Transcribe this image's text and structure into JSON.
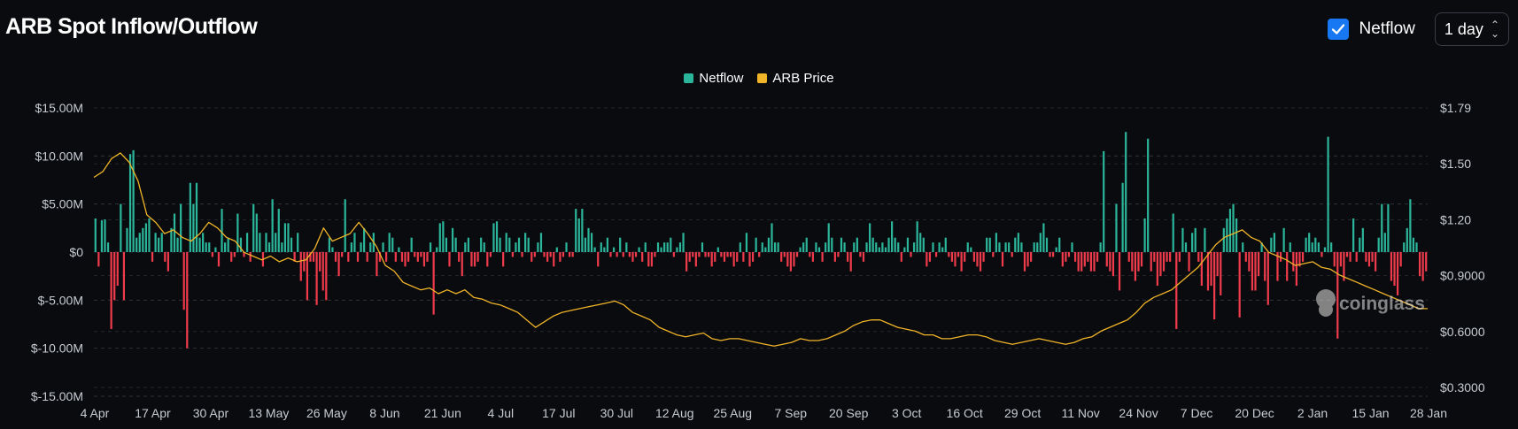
{
  "header": {
    "title": "ARB Spot Inflow/Outflow",
    "checkbox_label": "Netflow",
    "checkbox_checked": true,
    "interval": "1 day"
  },
  "colors": {
    "positive": "#2bb59a",
    "negative": "#ef3b4b",
    "price": "#f0b429",
    "checkbox": "#1877f2"
  },
  "watermark": "coinglass",
  "chart_data": {
    "type": "bar",
    "legend": [
      "Netflow",
      "ARB Price"
    ],
    "grid": true,
    "legend_position": "top-center",
    "y_left": {
      "ticks": [
        "$15.00M",
        "$10.00M",
        "$5.00M",
        "$0",
        "$-5.00M",
        "$-10.00M",
        "$-15.00M"
      ],
      "range": [
        -15,
        15
      ],
      "unit": "M USD"
    },
    "y_right": {
      "ticks": [
        "$1.79",
        "$1.50",
        "$1.20",
        "$0.9000",
        "$0.6000",
        "$0.3000"
      ],
      "range": [
        0.3,
        1.79
      ]
    },
    "x_ticks": [
      "4 Apr",
      "17 Apr",
      "30 Apr",
      "13 May",
      "26 May",
      "8 Jun",
      "21 Jun",
      "4 Jul",
      "17 Jul",
      "30 Jul",
      "12 Aug",
      "25 Aug",
      "7 Sep",
      "20 Sep",
      "3 Oct",
      "16 Oct",
      "29 Oct",
      "11 Nov",
      "24 Nov",
      "7 Dec",
      "20 Dec",
      "2 Jan",
      "15 Jan",
      "28 Jan"
    ],
    "series": [
      {
        "name": "Netflow",
        "values": [
          3.5,
          -1.5,
          3.3,
          3.4,
          1.0,
          -8.0,
          -5.0,
          -3.5,
          5.0,
          -5.0,
          2.5,
          10.2,
          10.6,
          1.5,
          2.0,
          2.5,
          3.0,
          3.5,
          -1.0,
          2.0,
          1.5,
          2.0,
          -1.0,
          -2.0,
          2.5,
          4.0,
          1.5,
          5.0,
          -6.0,
          -10.0,
          7.2,
          5.0,
          7.2,
          1.5,
          2.0,
          1.0,
          1.0,
          -0.5,
          0.5,
          -1.5,
          4.5,
          1.0,
          1.5,
          -1.0,
          -0.5,
          4.0,
          1.5,
          -0.5,
          2.0,
          -1.0,
          5.0,
          4.0,
          2.0,
          -1.5,
          2.0,
          1.0,
          5.5,
          2.0,
          4.5,
          1.0,
          3.0,
          3.0,
          1.5,
          -1.0,
          2.0,
          -3.0,
          -2.0,
          -5.0,
          -1.0,
          -1.0,
          -5.5,
          -2.0,
          -4.0,
          -5.0,
          1.5,
          0.5,
          -1.0,
          -2.5,
          -0.5,
          5.5,
          -1.0,
          1.0,
          2.0,
          -1.0,
          1.0,
          2.5,
          -1.0,
          1.0,
          2.0,
          -2.5,
          -1.0,
          1.0,
          -1.0,
          2.0,
          1.5,
          -1.0,
          0.5,
          -1.0,
          -1.5,
          -1.0,
          1.5,
          -0.5,
          -1.0,
          -0.5,
          -1.5,
          -1.0,
          1.0,
          -6.5,
          0.5,
          3.0,
          3.2,
          1.5,
          -1.5,
          2.5,
          1.5,
          -1.0,
          -2.5,
          1.0,
          1.5,
          -1.5,
          -1.5,
          -1.0,
          1.5,
          1.0,
          -1.5,
          -0.5,
          3.0,
          3.2,
          1.5,
          -1.5,
          2.0,
          1.5,
          -0.5,
          1.0,
          1.5,
          -0.5,
          2.0,
          1.5,
          -1.0,
          -0.5,
          1.0,
          2.0,
          -0.5,
          -1.0,
          -0.5,
          -1.5,
          0.5,
          -1.0,
          -0.5,
          1.0,
          -0.5,
          -0.5,
          4.5,
          3.5,
          4.5,
          1.5,
          2.5,
          2.0,
          0.5,
          -1.5,
          1.0,
          0.5,
          1.5,
          -0.5,
          0.5,
          -0.5,
          1.5,
          -0.5,
          1.0,
          -0.5,
          -1.0,
          -0.5,
          0.5,
          -1.0,
          1.0,
          -1.5,
          -1.5,
          -0.5,
          1.0,
          0.5,
          1.0,
          1.0,
          1.5,
          -0.5,
          0.5,
          1.0,
          2.0,
          -2.0,
          -1.0,
          -0.5,
          -1.5,
          -0.5,
          1.0,
          -0.5,
          -0.5,
          -1.5,
          -1.0,
          0.5,
          -0.5,
          -1.0,
          -0.5,
          -0.5,
          -1.5,
          -1.0,
          1.0,
          -1.0,
          2.0,
          -1.5,
          -1.0,
          1.5,
          -0.5,
          1.0,
          0.5,
          1.5,
          3.0,
          1.0,
          1.0,
          -1.0,
          -0.5,
          -1.5,
          -2.0,
          -1.5,
          -0.5,
          0.5,
          1.0,
          1.5,
          -0.5,
          -1.0,
          1.0,
          0.5,
          -1.0,
          1.0,
          3.0,
          1.5,
          -1.0,
          -0.5,
          1.5,
          1.0,
          -1.0,
          -2.0,
          1.0,
          1.5,
          -0.5,
          -1.0,
          1.0,
          3.0,
          1.5,
          1.0,
          0.5,
          1.0,
          0.5,
          1.5,
          3.2,
          1.5,
          1.0,
          -1.0,
          0.5,
          1.5,
          -0.5,
          1.0,
          3.2,
          2.0,
          1.5,
          -1.5,
          -1.0,
          1.0,
          -0.5,
          1.0,
          0.5,
          1.5,
          -0.5,
          -1.0,
          -1.5,
          -0.5,
          -2.0,
          -1.0,
          1.0,
          0.5,
          -1.0,
          -1.5,
          -2.0,
          -1.0,
          1.5,
          1.5,
          -0.5,
          2.0,
          1.0,
          -1.5,
          1.0,
          1.0,
          -0.5,
          1.5,
          2.0,
          1.0,
          -2.0,
          -1.5,
          -1.0,
          1.0,
          1.0,
          2.0,
          3.0,
          1.5,
          -0.5,
          -0.5,
          0.5,
          1.5,
          -1.5,
          -1.0,
          -0.5,
          1.0,
          -1.0,
          -2.0,
          -2.0,
          -1.5,
          -1.0,
          -2.0,
          -2.0,
          -1.0,
          1.0,
          10.5,
          -1.5,
          -2.0,
          -2.5,
          5.0,
          -4.0,
          7.2,
          12.5,
          -1.0,
          -2.0,
          -3.0,
          -2.0,
          -1.5,
          3.5,
          11.8,
          -2.0,
          -1.0,
          -3.5,
          -2.5,
          -2.0,
          -1.0,
          -1.0,
          4.0,
          -8.0,
          -1.0,
          2.5,
          1.0,
          -2.0,
          2.0,
          2.5,
          -1.0,
          -3.5,
          2.5,
          -4.0,
          -3.5,
          -7.0,
          -2.5,
          -4.5,
          2.5,
          3.5,
          4.5,
          5.0,
          3.5,
          -6.8,
          1.0,
          -1.0,
          -2.0,
          -4.0,
          -4.0,
          -2.5,
          1.0,
          -3.0,
          -5.5,
          1.5,
          2.0,
          -3.0,
          -1.0,
          2.5,
          -3.0,
          1.0,
          -2.0,
          -3.5,
          -1.5,
          -1.0,
          1.5,
          2.0,
          1.0,
          1.5,
          1.0,
          -0.5,
          0.5,
          12.0,
          1.0,
          -1.5,
          -9.0,
          -1.5,
          -3.0,
          -0.5,
          -1.0,
          3.5,
          -1.0,
          1.5,
          2.5,
          -1.0,
          -1.5,
          -1.0,
          -2.0,
          1.5,
          5.0,
          2.0,
          5.0,
          -3.0,
          -3.5,
          -4.5,
          -1.5,
          1.0,
          2.5,
          5.5,
          1.5,
          1.0,
          -2.5,
          -3.0,
          -2.0
        ]
      },
      {
        "name": "ARB Price",
        "values": [
          1.42,
          1.45,
          1.52,
          1.55,
          1.5,
          1.4,
          1.22,
          1.18,
          1.12,
          1.14,
          1.1,
          1.08,
          1.12,
          1.18,
          1.15,
          1.1,
          1.08,
          1.02,
          1.0,
          0.98,
          1.0,
          0.97,
          0.99,
          0.97,
          0.98,
          1.04,
          1.15,
          1.08,
          1.1,
          1.12,
          1.18,
          1.12,
          1.05,
          0.95,
          0.92,
          0.86,
          0.84,
          0.82,
          0.83,
          0.8,
          0.82,
          0.8,
          0.82,
          0.78,
          0.77,
          0.75,
          0.74,
          0.72,
          0.7,
          0.66,
          0.62,
          0.65,
          0.68,
          0.7,
          0.71,
          0.72,
          0.73,
          0.74,
          0.75,
          0.76,
          0.74,
          0.7,
          0.68,
          0.66,
          0.62,
          0.6,
          0.58,
          0.57,
          0.58,
          0.59,
          0.56,
          0.55,
          0.56,
          0.56,
          0.55,
          0.54,
          0.53,
          0.52,
          0.53,
          0.54,
          0.56,
          0.55,
          0.55,
          0.56,
          0.58,
          0.6,
          0.63,
          0.65,
          0.66,
          0.66,
          0.64,
          0.62,
          0.61,
          0.6,
          0.58,
          0.58,
          0.56,
          0.56,
          0.57,
          0.58,
          0.58,
          0.57,
          0.55,
          0.54,
          0.53,
          0.54,
          0.55,
          0.56,
          0.55,
          0.54,
          0.53,
          0.54,
          0.56,
          0.57,
          0.6,
          0.62,
          0.64,
          0.66,
          0.7,
          0.75,
          0.78,
          0.8,
          0.82,
          0.86,
          0.9,
          0.94,
          1.0,
          1.06,
          1.1,
          1.12,
          1.14,
          1.1,
          1.08,
          1.02,
          1.0,
          0.98,
          0.95,
          0.96,
          0.97,
          0.94,
          0.93,
          0.9,
          0.88,
          0.86,
          0.84,
          0.82,
          0.8,
          0.78,
          0.76,
          0.74,
          0.72,
          0.72
        ]
      }
    ]
  }
}
